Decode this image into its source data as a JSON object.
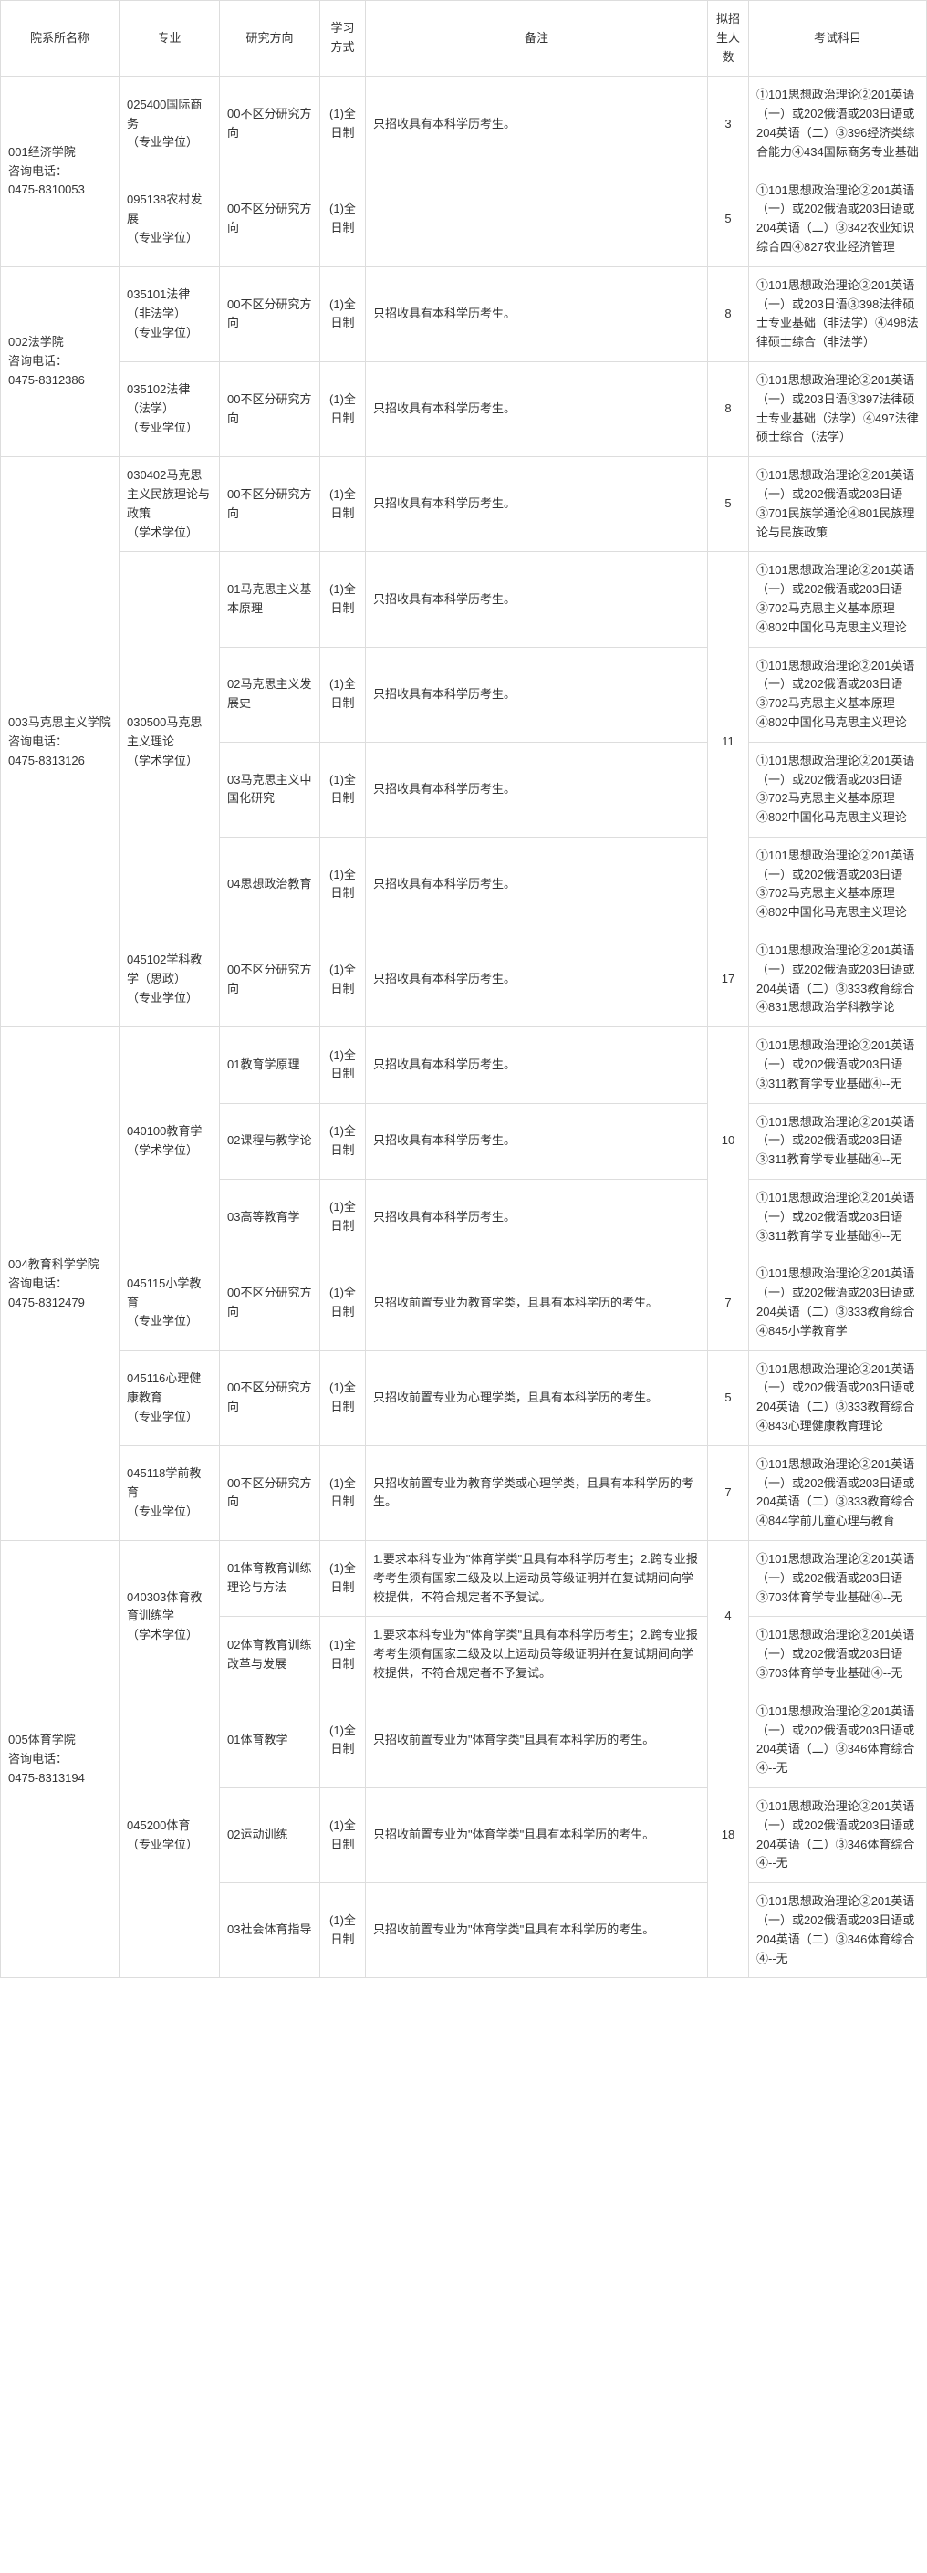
{
  "headers": {
    "dept": "院系所名称",
    "major": "专业",
    "direction": "研究方向",
    "mode": "学习方式",
    "note": "备注",
    "num": "拟招生人数",
    "subjects": "考试科目"
  },
  "depts": [
    {
      "name": "001经济学院\n咨询电话：\n0475-8310053",
      "rows": [
        {
          "major": "025400国际商务\n（专业学位）",
          "dir": "00不区分研究方向",
          "mode": "(1)全日制",
          "note": "只招收具有本科学历考生。",
          "num": "3",
          "subj": "①101思想政治理论②201英语（一）或202俄语或203日语或204英语（二）③396经济类综合能力④434国际商务专业基础"
        },
        {
          "major": "095138农村发展\n（专业学位）",
          "dir": "00不区分研究方向",
          "mode": "(1)全日制",
          "note": "",
          "num": "5",
          "subj": "①101思想政治理论②201英语（一）或202俄语或203日语或204英语（二）③342农业知识综合四④827农业经济管理"
        }
      ]
    },
    {
      "name": "002法学院\n咨询电话：\n0475-8312386",
      "rows": [
        {
          "major": "035101法律（非法学）\n（专业学位）",
          "dir": "00不区分研究方向",
          "mode": "(1)全日制",
          "note": "只招收具有本科学历考生。",
          "num": "8",
          "subj": "①101思想政治理论②201英语（一）或203日语③398法律硕士专业基础（非法学）④498法律硕士综合（非法学）"
        },
        {
          "major": "035102法律（法学）\n（专业学位）",
          "dir": "00不区分研究方向",
          "mode": "(1)全日制",
          "note": "只招收具有本科学历考生。",
          "num": "8",
          "subj": "①101思想政治理论②201英语（一）或203日语③397法律硕士专业基础（法学）④497法律硕士综合（法学）"
        }
      ]
    },
    {
      "name": "003马克思主义学院\n咨询电话：\n0475-8313126",
      "rows": [
        {
          "major": "030402马克思主义民族理论与政策\n（学术学位）",
          "dir": "00不区分研究方向",
          "mode": "(1)全日制",
          "note": "只招收具有本科学历考生。",
          "num": "5",
          "subj": "①101思想政治理论②201英语（一）或202俄语或203日语③701民族学通论④801民族理论与民族政策"
        },
        {
          "major": "030500马克思主义理论\n（学术学位）",
          "majorRowspan": 4,
          "dir": "01马克思主义基本原理",
          "mode": "(1)全日制",
          "note": "只招收具有本科学历考生。",
          "num": "11",
          "numRowspan": 4,
          "subj": "①101思想政治理论②201英语（一）或202俄语或203日语③702马克思主义基本原理④802中国化马克思主义理论"
        },
        {
          "dir": "02马克思主义发展史",
          "mode": "(1)全日制",
          "note": "只招收具有本科学历考生。",
          "subj": "①101思想政治理论②201英语（一）或202俄语或203日语③702马克思主义基本原理④802中国化马克思主义理论"
        },
        {
          "dir": "03马克思主义中国化研究",
          "mode": "(1)全日制",
          "note": "只招收具有本科学历考生。",
          "subj": "①101思想政治理论②201英语（一）或202俄语或203日语③702马克思主义基本原理④802中国化马克思主义理论"
        },
        {
          "dir": "04思想政治教育",
          "mode": "(1)全日制",
          "note": "只招收具有本科学历考生。",
          "subj": "①101思想政治理论②201英语（一）或202俄语或203日语③702马克思主义基本原理④802中国化马克思主义理论"
        },
        {
          "major": "045102学科教学（思政）\n（专业学位）",
          "dir": "00不区分研究方向",
          "mode": "(1)全日制",
          "note": "只招收具有本科学历考生。",
          "num": "17",
          "subj": "①101思想政治理论②201英语（一）或202俄语或203日语或204英语（二）③333教育综合④831思想政治学科教学论"
        }
      ]
    },
    {
      "name": "004教育科学学院\n咨询电话：\n0475-8312479",
      "rows": [
        {
          "major": "040100教育学\n（学术学位）",
          "majorRowspan": 3,
          "dir": "01教育学原理",
          "mode": "(1)全日制",
          "note": "只招收具有本科学历考生。",
          "num": "10",
          "numRowspan": 3,
          "subj": "①101思想政治理论②201英语（一）或202俄语或203日语③311教育学专业基础④--无"
        },
        {
          "dir": "02课程与教学论",
          "mode": "(1)全日制",
          "note": "只招收具有本科学历考生。",
          "subj": "①101思想政治理论②201英语（一）或202俄语或203日语③311教育学专业基础④--无"
        },
        {
          "dir": "03高等教育学",
          "mode": "(1)全日制",
          "note": "只招收具有本科学历考生。",
          "subj": "①101思想政治理论②201英语（一）或202俄语或203日语③311教育学专业基础④--无"
        },
        {
          "major": "045115小学教育\n（专业学位）",
          "dir": "00不区分研究方向",
          "mode": "(1)全日制",
          "note": "只招收前置专业为教育学类，且具有本科学历的考生。",
          "num": "7",
          "subj": "①101思想政治理论②201英语（一）或202俄语或203日语或204英语（二）③333教育综合④845小学教育学"
        },
        {
          "major": "045116心理健康教育\n（专业学位）",
          "dir": "00不区分研究方向",
          "mode": "(1)全日制",
          "note": "只招收前置专业为心理学类，且具有本科学历的考生。",
          "num": "5",
          "subj": "①101思想政治理论②201英语（一）或202俄语或203日语或204英语（二）③333教育综合④843心理健康教育理论"
        },
        {
          "major": "045118学前教育\n（专业学位）",
          "dir": "00不区分研究方向",
          "mode": "(1)全日制",
          "note": "只招收前置专业为教育学类或心理学类，且具有本科学历的考生。",
          "num": "7",
          "subj": "①101思想政治理论②201英语（一）或202俄语或203日语或204英语（二）③333教育综合④844学前儿童心理与教育"
        }
      ]
    },
    {
      "name": "005体育学院\n咨询电话：\n0475-8313194",
      "rows": [
        {
          "major": "040303体育教育训练学\n（学术学位）",
          "majorRowspan": 2,
          "dir": "01体育教育训练理论与方法",
          "mode": "(1)全日制",
          "note": "1.要求本科专业为\"体育学类\"且具有本科学历考生；2.跨专业报考考生须有国家二级及以上运动员等级证明并在复试期间向学校提供，不符合规定者不予复试。",
          "num": "4",
          "numRowspan": 2,
          "subj": "①101思想政治理论②201英语（一）或202俄语或203日语③703体育学专业基础④--无"
        },
        {
          "dir": "02体育教育训练改革与发展",
          "mode": "(1)全日制",
          "note": "1.要求本科专业为\"体育学类\"且具有本科学历考生；2.跨专业报考考生须有国家二级及以上运动员等级证明并在复试期间向学校提供，不符合规定者不予复试。",
          "subj": "①101思想政治理论②201英语（一）或202俄语或203日语③703体育学专业基础④--无"
        },
        {
          "major": "045200体育\n（专业学位）",
          "majorRowspan": 3,
          "dir": "01体育教学",
          "mode": "(1)全日制",
          "note": "只招收前置专业为\"体育学类\"且具有本科学历的考生。",
          "num": "18",
          "numRowspan": 3,
          "subj": "①101思想政治理论②201英语（一）或202俄语或203日语或204英语（二）③346体育综合④--无"
        },
        {
          "dir": "02运动训练",
          "mode": "(1)全日制",
          "note": "只招收前置专业为\"体育学类\"且具有本科学历的考生。",
          "subj": "①101思想政治理论②201英语（一）或202俄语或203日语或204英语（二）③346体育综合④--无"
        },
        {
          "dir": "03社会体育指导",
          "mode": "(1)全日制",
          "note": "只招收前置专业为\"体育学类\"且具有本科学历的考生。",
          "subj": "①101思想政治理论②201英语（一）或202俄语或203日语或204英语（二）③346体育综合④--无"
        }
      ]
    }
  ]
}
